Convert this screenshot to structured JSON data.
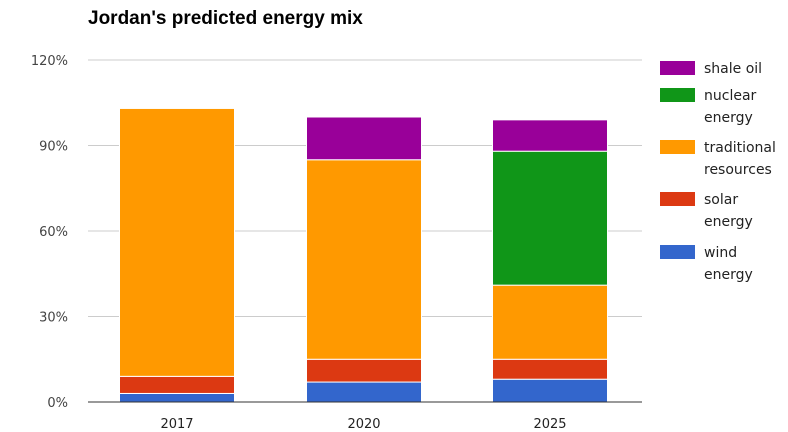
{
  "chart_data": {
    "type": "bar",
    "stacked": true,
    "title": "Jordan's predicted energy mix",
    "xlabel": "",
    "ylabel": "",
    "categories": [
      "2017",
      "2020",
      "2025"
    ],
    "ylim": [
      0,
      120
    ],
    "yticks": [
      "0%",
      "30%",
      "60%",
      "90%",
      "120%"
    ],
    "ytick_values": [
      0,
      30,
      60,
      90,
      120
    ],
    "grid": true,
    "legend_position": "right",
    "series": [
      {
        "name": "wind energy",
        "color": "#3366cc",
        "values": [
          3,
          7,
          8
        ]
      },
      {
        "name": "solar energy",
        "color": "#dc3912",
        "values": [
          6,
          8,
          7
        ]
      },
      {
        "name": "traditional resources",
        "color": "#ff9900",
        "values": [
          94,
          70,
          26
        ]
      },
      {
        "name": "nuclear energy",
        "color": "#109618",
        "values": [
          0,
          0,
          47
        ]
      },
      {
        "name": "shale oil",
        "color": "#990099",
        "values": [
          0,
          15,
          11
        ]
      }
    ],
    "legend_order": [
      "shale oil",
      "nuclear energy",
      "traditional resources",
      "solar energy",
      "wind energy"
    ]
  }
}
